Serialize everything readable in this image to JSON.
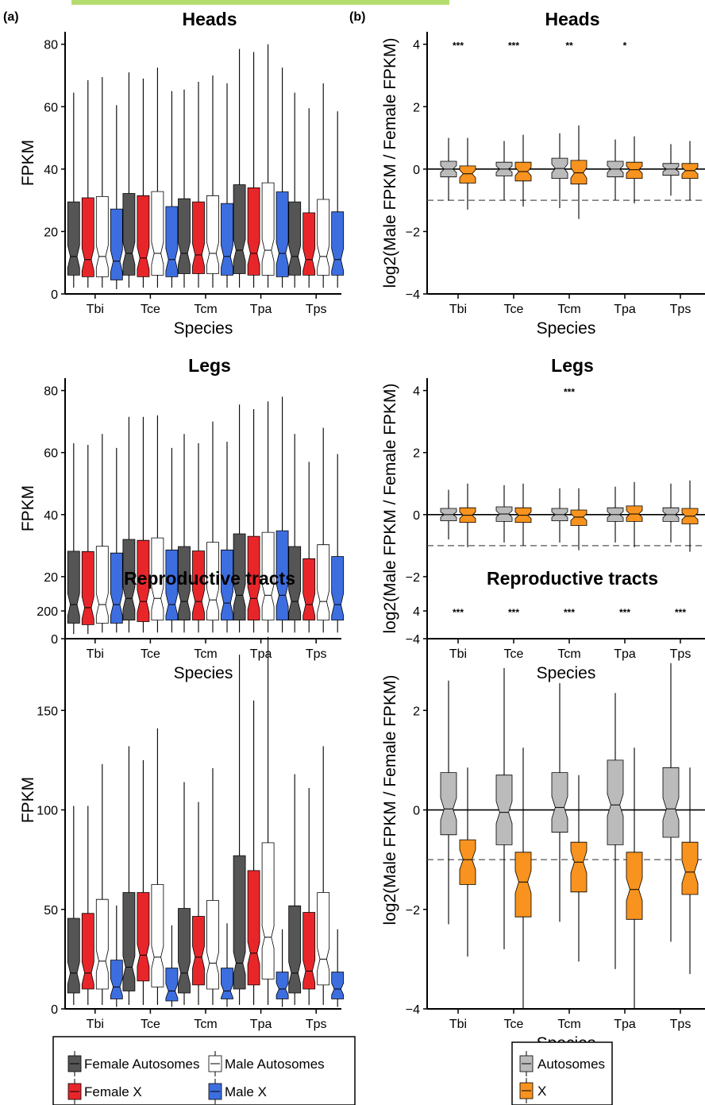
{
  "header_accent_color": "#b5dc6e",
  "chart_data": [
    {
      "type": "boxplot",
      "panel": "(a)",
      "title": "Heads",
      "xlabel": "Species",
      "ylabel": "FPKM",
      "ylim": [
        0,
        84
      ],
      "yticks": [
        "0",
        "20",
        "40",
        "60",
        "80"
      ],
      "categories": [
        "Tbi",
        "Tce",
        "Tcm",
        "Tpa",
        "Tps"
      ],
      "series": [
        {
          "name": "Female Autosomes",
          "color": "#555555",
          "boxes": [
            [
              2,
              6,
              12,
              29.5,
              64.5
            ],
            [
              2,
              6,
              13,
              32.2,
              71
            ],
            [
              2,
              6.5,
              13,
              30.5,
              65.5
            ],
            [
              2,
              6.5,
              14,
              35,
              78.5
            ],
            [
              2,
              6,
              12,
              29.5,
              64.5
            ]
          ]
        },
        {
          "name": "Female X",
          "color": "#e8262a",
          "boxes": [
            [
              2,
              5.5,
              11,
              30.8,
              68.5
            ],
            [
              2,
              5.5,
              11.5,
              31.5,
              69
            ],
            [
              2,
              6.5,
              12.5,
              29.5,
              68
            ],
            [
              2,
              6,
              13,
              34,
              77.5
            ],
            [
              2,
              6,
              11,
              26,
              59.5
            ]
          ]
        },
        {
          "name": "Male Autosomes",
          "color": "#ffffff",
          "boxes": [
            [
              2,
              5.5,
              12,
              31.2,
              69.5
            ],
            [
              2,
              6,
              13,
              32.8,
              72.5
            ],
            [
              2,
              6.5,
              13,
              31.5,
              70
            ],
            [
              2,
              6,
              14,
              35.6,
              80
            ],
            [
              2,
              6,
              12,
              30.3,
              67.5
            ]
          ]
        },
        {
          "name": "Male X",
          "color": "#3d6ee0",
          "boxes": [
            [
              1.5,
              4.5,
              10.5,
              27.2,
              60.5
            ],
            [
              2,
              5.5,
              11,
              28,
              65
            ],
            [
              2,
              6,
              12,
              29,
              67.5
            ],
            [
              2,
              5.5,
              13,
              32.7,
              72.5
            ],
            [
              2,
              6,
              11,
              26.3,
              58.5
            ]
          ]
        }
      ]
    },
    {
      "type": "boxplot",
      "panel": "(b)",
      "title": "Heads",
      "xlabel": "Species",
      "ylabel": "log2(Male FPKM / Female FPKM)",
      "ylim": [
        -4,
        4.4
      ],
      "yticks": [
        "−4",
        "−2",
        "0",
        "2",
        "4"
      ],
      "categories": [
        "Tbi",
        "Tce",
        "Tcm",
        "Tpa",
        "Tps"
      ],
      "series": [
        {
          "name": "Autosomes",
          "color": "#bbbbbb",
          "boxes": [
            [
              -1,
              -0.25,
              0,
              0.25,
              1
            ],
            [
              -1,
              -0.22,
              0,
              0.22,
              0.9
            ],
            [
              -1.25,
              -0.3,
              0.02,
              0.35,
              1.15
            ],
            [
              -1,
              -0.25,
              0,
              0.25,
              0.95
            ],
            [
              -0.85,
              -0.2,
              0,
              0.18,
              0.8
            ]
          ]
        },
        {
          "name": "X",
          "color": "#f7931e",
          "boxes": [
            [
              -1.3,
              -0.45,
              -0.15,
              0.1,
              1
            ],
            [
              -1.2,
              -0.38,
              -0.08,
              0.22,
              1.1
            ],
            [
              -1.6,
              -0.48,
              -0.12,
              0.28,
              1.4
            ],
            [
              -1.1,
              -0.3,
              -0.02,
              0.22,
              1.05
            ],
            [
              -1,
              -0.3,
              -0.05,
              0.18,
              0.9
            ]
          ]
        }
      ],
      "reference_line": 0,
      "dashed_line": -1,
      "significance": [
        "***",
        "***",
        "**",
        "*",
        ""
      ]
    },
    {
      "type": "boxplot",
      "panel": "",
      "title": "Legs",
      "xlabel": "Species",
      "ylabel": "FPKM",
      "ylim": [
        0,
        84
      ],
      "yticks": [
        "0",
        "20",
        "40",
        "60",
        "80"
      ],
      "categories": [
        "Tbi",
        "Tce",
        "Tcm",
        "Tpa",
        "Tps"
      ],
      "series": [
        {
          "name": "Female Autosomes",
          "color": "#555555",
          "boxes": [
            [
              1.5,
              5,
              11,
              28.2,
              63
            ],
            [
              2,
              6,
              13,
              32,
              71.5
            ],
            [
              2,
              6,
              12,
              29.7,
              66
            ],
            [
              2,
              6,
              14,
              33.8,
              75.5
            ],
            [
              2,
              6,
              12,
              29.7,
              66
            ]
          ]
        },
        {
          "name": "Female X",
          "color": "#e8262a",
          "boxes": [
            [
              1.5,
              4.5,
              10,
              28.1,
              62.5
            ],
            [
              2,
              5.5,
              12,
              31.7,
              71.5
            ],
            [
              2,
              6,
              12,
              28.3,
              63
            ],
            [
              2,
              6,
              13,
              33,
              74
            ],
            [
              2,
              6,
              11,
              25.8,
              57
            ]
          ]
        },
        {
          "name": "Male Autosomes",
          "color": "#ffffff",
          "boxes": [
            [
              2,
              5,
              11,
              29.8,
              66
            ],
            [
              2,
              6,
              13,
              32.5,
              72
            ],
            [
              2,
              6,
              12.5,
              31.1,
              70
            ],
            [
              2,
              6,
              14,
              34.3,
              76.5
            ],
            [
              2,
              6,
              12,
              30.3,
              68
            ]
          ]
        },
        {
          "name": "Male X",
          "color": "#3d6ee0",
          "boxes": [
            [
              2,
              5,
              11,
              27.6,
              61.5
            ],
            [
              2,
              6,
              11,
              28.6,
              61.5
            ],
            [
              2,
              6,
              11.5,
              28.6,
              63.5
            ],
            [
              2,
              6,
              14,
              34.8,
              78
            ],
            [
              2,
              6,
              11,
              26.5,
              59.5
            ]
          ]
        }
      ]
    },
    {
      "type": "boxplot",
      "panel": "",
      "title": "Legs",
      "xlabel": "Species",
      "ylabel": "log2(Male FPKM / Female FPKM)",
      "ylim": [
        -4,
        4.4
      ],
      "yticks": [
        "−4",
        "−2",
        "0",
        "2",
        "4"
      ],
      "categories": [
        "Tbi",
        "Tce",
        "Tcm",
        "Tpa",
        "Tps"
      ],
      "series": [
        {
          "name": "Autosomes",
          "color": "#bbbbbb",
          "boxes": [
            [
              -0.8,
              -0.2,
              0,
              0.2,
              0.8
            ],
            [
              -0.9,
              -0.22,
              0.02,
              0.25,
              0.95
            ],
            [
              -0.9,
              -0.2,
              0,
              0.2,
              0.85
            ],
            [
              -0.9,
              -0.22,
              0,
              0.22,
              0.9
            ],
            [
              -0.9,
              -0.22,
              0,
              0.22,
              1
            ]
          ]
        },
        {
          "name": "X",
          "color": "#f7931e",
          "boxes": [
            [
              -1.05,
              -0.25,
              -0.02,
              0.22,
              1
            ],
            [
              -1,
              -0.25,
              -0.02,
              0.22,
              1
            ],
            [
              -1.15,
              -0.35,
              -0.08,
              0.15,
              0.85
            ],
            [
              -1.05,
              -0.22,
              0.02,
              0.28,
              1.05
            ],
            [
              -1.2,
              -0.3,
              -0.05,
              0.2,
              1.1
            ]
          ]
        }
      ],
      "reference_line": 0,
      "dashed_line": -1,
      "significance": [
        "",
        "",
        "***",
        "",
        ""
      ]
    },
    {
      "type": "boxplot",
      "panel": "",
      "title": "Reproductive tracts",
      "xlabel": "Species",
      "ylabel": "FPKM",
      "ylim": [
        0,
        210
      ],
      "yticks": [
        "0",
        "50",
        "100",
        "150",
        "200"
      ],
      "categories": [
        "Tbi",
        "Tce",
        "Tcm",
        "Tpa",
        "Tps"
      ],
      "series": [
        {
          "name": "Female Autosomes",
          "color": "#555555",
          "boxes": [
            [
              2,
              8,
              18,
              45.5,
              102
            ],
            [
              2,
              9,
              21,
              58.5,
              132
            ],
            [
              2,
              8,
              18,
              50.5,
              114
            ],
            [
              2,
              10,
              23,
              77,
              178
            ],
            [
              2,
              8,
              18,
              51.8,
              118
            ]
          ]
        },
        {
          "name": "Female X",
          "color": "#e8262a",
          "boxes": [
            [
              2,
              10,
              18,
              48,
              102
            ],
            [
              2,
              14,
              27,
              58.5,
              125
            ],
            [
              2,
              12,
              26,
              46.5,
              104
            ],
            [
              2,
              12,
              28,
              69.5,
              155
            ],
            [
              2,
              10,
              19,
              48.5,
              111
            ]
          ]
        },
        {
          "name": "Male Autosomes",
          "color": "#ffffff",
          "boxes": [
            [
              2,
              10,
              24,
              55,
              123
            ],
            [
              2,
              11,
              26,
              62.5,
              141
            ],
            [
              2,
              10,
              23,
              54.5,
              121
            ],
            [
              2,
              15,
              36,
              83.5,
              187
            ],
            [
              2,
              12,
              25,
              58.5,
              132
            ]
          ]
        },
        {
          "name": "Male X",
          "color": "#3d6ee0",
          "boxes": [
            [
              1,
              5,
              11,
              24.5,
              52
            ],
            [
              1,
              4,
              9,
              20.5,
              42
            ],
            [
              1,
              5,
              9,
              20.5,
              43
            ],
            [
              1,
              5,
              10,
              18.5,
              40
            ],
            [
              1,
              5,
              10,
              18.5,
              40
            ]
          ]
        }
      ]
    },
    {
      "type": "boxplot",
      "panel": "",
      "title": "Reproductive tracts",
      "xlabel": "Species",
      "ylabel": "log2(Male FPKM / Female FPKM)",
      "ylim": [
        -4,
        4.4
      ],
      "yticks": [
        "−4",
        "−2",
        "0",
        "2",
        "4"
      ],
      "categories": [
        "Tbi",
        "Tce",
        "Tcm",
        "Tpa",
        "Tps"
      ],
      "series": [
        {
          "name": "Autosomes",
          "color": "#bbbbbb",
          "boxes": [
            [
              -2.3,
              -0.5,
              0.02,
              0.75,
              2.6
            ],
            [
              -2.8,
              -0.7,
              -0.05,
              0.7,
              2.85
            ],
            [
              -2.25,
              -0.45,
              0.05,
              0.75,
              2.55
            ],
            [
              -3.2,
              -0.7,
              0.1,
              1,
              2.35
            ],
            [
              -2.65,
              -0.55,
              0.02,
              0.85,
              2.95
            ]
          ]
        },
        {
          "name": "X",
          "color": "#f7931e",
          "boxes": [
            [
              -2.95,
              -1.5,
              -1,
              -0.6,
              0.85
            ],
            [
              -4,
              -2.15,
              -1.45,
              -0.85,
              1.25
            ],
            [
              -3.05,
              -1.65,
              -1.05,
              -0.65,
              0.7
            ],
            [
              -4,
              -2.2,
              -1.6,
              -0.85,
              1.25
            ],
            [
              -3.3,
              -1.7,
              -1.25,
              -0.65,
              0.85
            ]
          ]
        }
      ],
      "reference_line": 0,
      "dashed_line": -1,
      "significance": [
        "***",
        "***",
        "***",
        "***",
        "***"
      ]
    }
  ],
  "legends": [
    {
      "entries": [
        "Female Autosomes",
        "Male Autosomes",
        "Female X",
        "Male X"
      ],
      "colors": [
        "#555555",
        "#ffffff",
        "#e8262a",
        "#3d6ee0"
      ]
    },
    {
      "entries": [
        "Autosomes",
        "X"
      ],
      "colors": [
        "#bbbbbb",
        "#f7931e"
      ]
    }
  ]
}
